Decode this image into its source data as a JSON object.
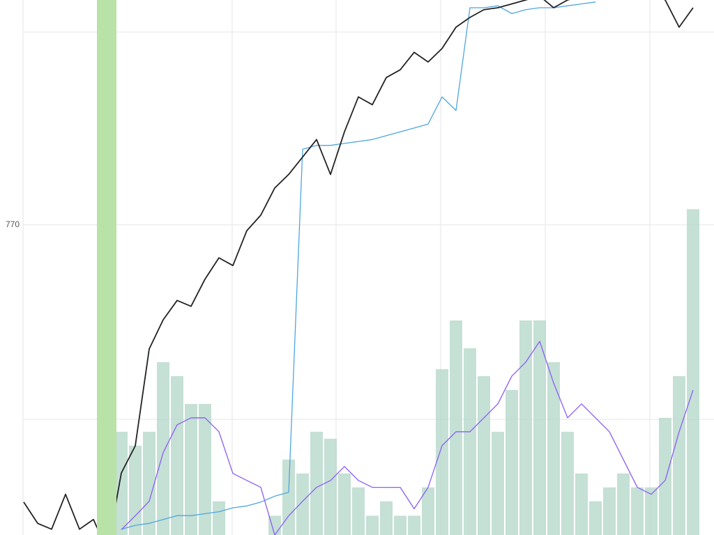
{
  "chart_data": {
    "type": "line",
    "x": [
      0,
      1,
      2,
      3,
      4,
      5,
      6,
      7,
      8,
      9,
      10,
      11,
      12,
      13,
      14,
      15,
      16,
      17,
      18,
      19,
      20,
      21,
      22,
      23,
      24,
      25,
      26,
      27,
      28,
      29,
      30,
      31,
      32,
      33,
      34,
      35,
      36,
      37,
      38,
      39,
      40,
      41,
      42,
      43,
      44,
      45,
      46,
      47,
      48
    ],
    "xlim": [
      -1.7,
      49.5
    ],
    "ylim": [
      754,
      781.6
    ],
    "yticks": [
      770
    ],
    "y2lim": [
      0,
      100
    ],
    "grid": true,
    "series": [
      {
        "type": "bar",
        "axis": "y2",
        "color": "#b7d8cb",
        "values": [
          null,
          null,
          null,
          null,
          null,
          null,
          null,
          19.3,
          16.7,
          19.3,
          32.3,
          29.7,
          24.5,
          24.5,
          6.3,
          0,
          0,
          0,
          3.6,
          14.1,
          11.5,
          19.3,
          18.0,
          11.5,
          8.9,
          3.6,
          6.3,
          3.6,
          3.6,
          8.9,
          31.0,
          40.1,
          34.9,
          29.7,
          19.3,
          27.1,
          40.1,
          40.1,
          32.3,
          19.3,
          11.5,
          6.3,
          8.9,
          11.5,
          8.9,
          8.9,
          21.9,
          29.7,
          60.9
        ]
      },
      {
        "type": "line",
        "color": "#4da6e0",
        "values": [
          null,
          null,
          null,
          null,
          null,
          null,
          null,
          754.3,
          754.5,
          754.6,
          754.8,
          755.0,
          755.0,
          755.1,
          755.2,
          755.4,
          755.5,
          755.7,
          756.0,
          756.2,
          773.9,
          774.1,
          774.1,
          774.2,
          774.3,
          774.4,
          774.6,
          774.8,
          775.0,
          775.2,
          776.6,
          775.9,
          781.2,
          781.2,
          781.3,
          780.9,
          781.1,
          781.2,
          781.2,
          781.3,
          781.4,
          781.5,
          null,
          null,
          null,
          null,
          null,
          null,
          null
        ]
      },
      {
        "type": "line",
        "axis": "y2",
        "color": "#8b5cf6",
        "values": [
          null,
          null,
          null,
          null,
          null,
          null,
          null,
          1.0,
          3.6,
          6.3,
          15.4,
          20.6,
          21.9,
          21.9,
          19.3,
          11.5,
          10.2,
          8.9,
          0,
          3.6,
          6.3,
          8.9,
          10.2,
          12.8,
          10.2,
          8.9,
          8.9,
          8.9,
          4.9,
          8.9,
          16.7,
          19.3,
          19.3,
          21.9,
          24.5,
          29.7,
          32.3,
          36.2,
          28.4,
          21.9,
          24.5,
          21.9,
          19.3,
          14.1,
          8.9,
          7.6,
          10.2,
          19.3,
          27.1
        ]
      },
      {
        "type": "line",
        "color": "#222222",
        "values": [
          755.7,
          754.6,
          754.3,
          756.1,
          754.3,
          754.8,
          753.2,
          757.2,
          758.6,
          763.6,
          765.1,
          766.1,
          765.8,
          767.2,
          768.3,
          767.9,
          769.7,
          770.5,
          771.9,
          772.6,
          773.5,
          774.4,
          772.6,
          774.8,
          776.6,
          776.2,
          777.6,
          778.0,
          778.9,
          778.4,
          779.1,
          780.2,
          780.7,
          781.1,
          781.2,
          781.4,
          781.6,
          781.8,
          781.2,
          781.6,
          781.8,
          782.0,
          782.0,
          782.1,
          782.1,
          782.0,
          781.6,
          780.2,
          781.2
        ]
      }
    ]
  }
}
